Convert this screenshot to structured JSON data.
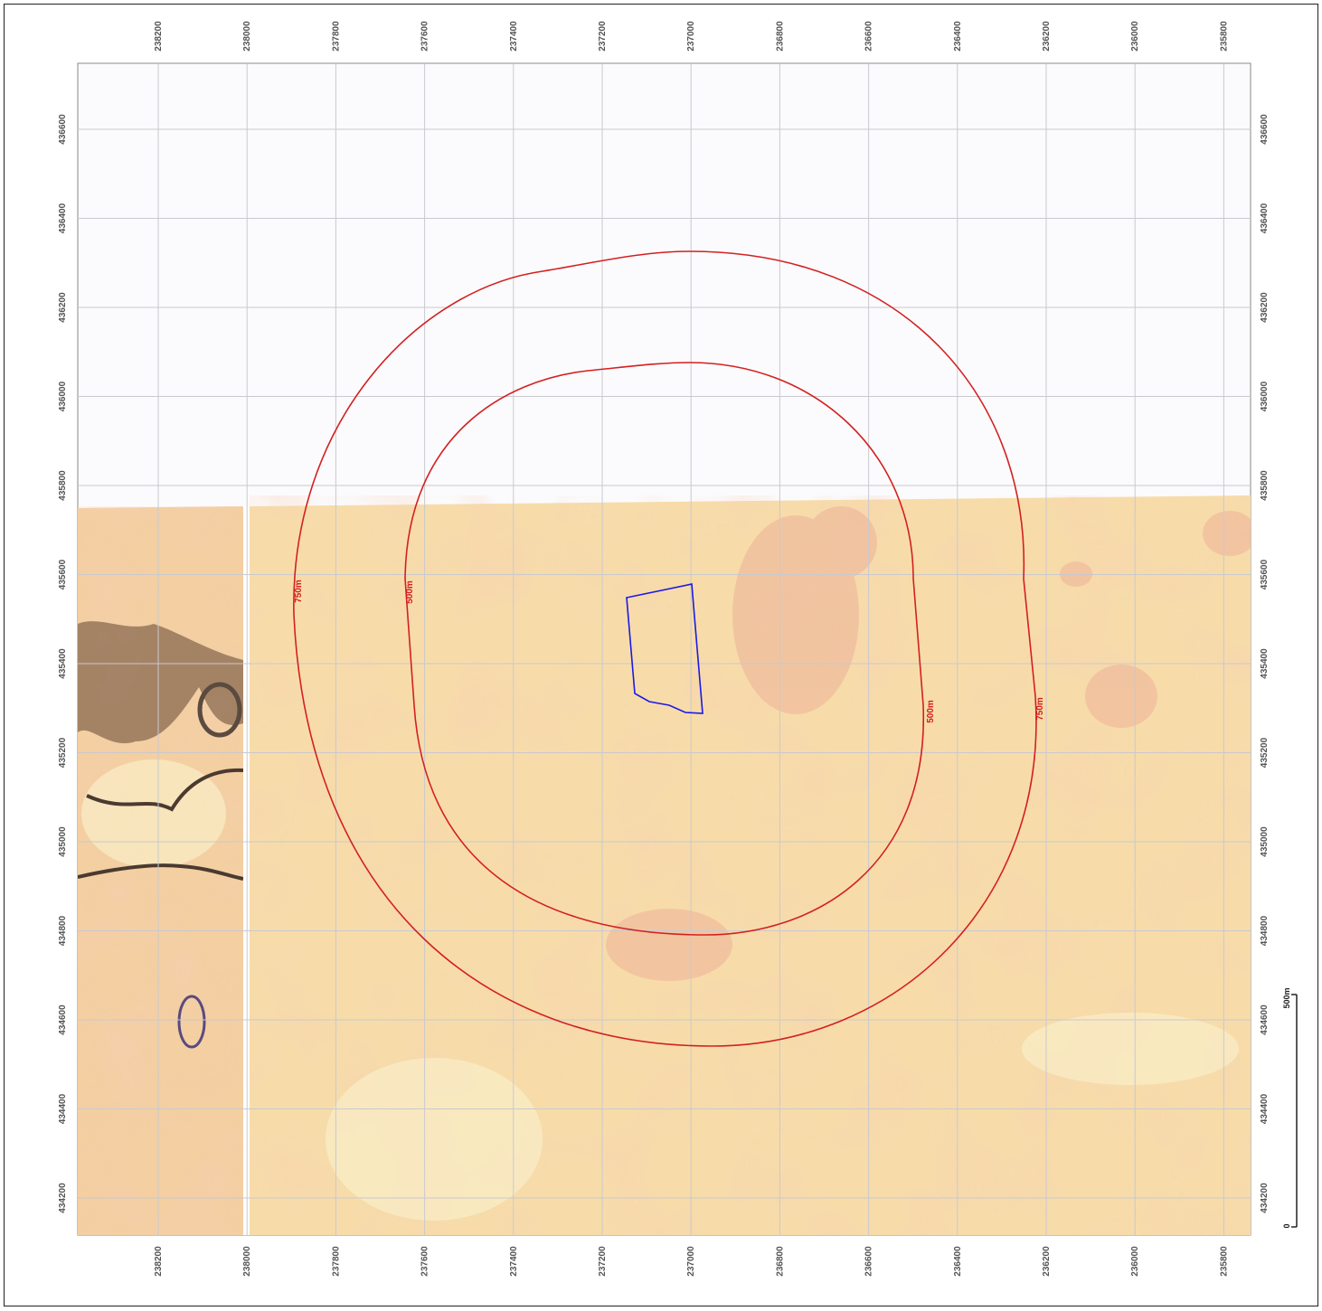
{
  "map": {
    "top_ticks": [
      "238200",
      "238000",
      "237800",
      "237600",
      "237400",
      "237200",
      "237000",
      "236800",
      "236600",
      "236400",
      "236200",
      "236000",
      "235800"
    ],
    "bottom_ticks": [
      "238200",
      "238000",
      "237800",
      "237600",
      "237400",
      "237200",
      "237000",
      "236800",
      "236600",
      "236400",
      "236200",
      "236000",
      "235800"
    ],
    "left_ticks": [
      "436600",
      "436400",
      "436200",
      "436000",
      "435800",
      "435600",
      "435400",
      "435200",
      "435000",
      "434800",
      "434600",
      "434400",
      "434200"
    ],
    "right_ticks": [
      "436600",
      "436400",
      "436200",
      "436000",
      "435800",
      "435600",
      "435400",
      "435200",
      "435000",
      "434800",
      "434600",
      "434400",
      "434200"
    ],
    "buffers": [
      {
        "label": "500m",
        "color": "#d42020"
      },
      {
        "label": "750m",
        "color": "#d42020"
      }
    ],
    "buffer_labels": [
      "750m",
      "500m",
      "500m",
      "750m"
    ],
    "site_boundary_color": "#1a1ae6",
    "scale_bar": {
      "zero_label": "0",
      "end_label": "500m"
    }
  }
}
